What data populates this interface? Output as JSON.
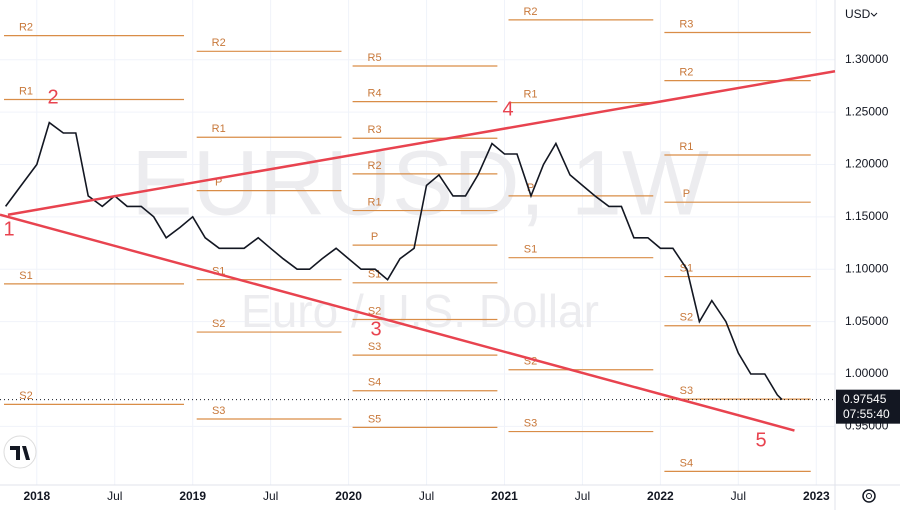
{
  "chart_data": {
    "type": "line",
    "title": "EURUSD, 1W",
    "subtitle": "Euro / U.S. Dollar",
    "currency": "USD",
    "last_price": 0.97545,
    "last_price_label": "0.97545",
    "countdown": "07:55:40",
    "color": "#131722",
    "ylim": [
      0.894,
      1.357
    ],
    "xlim": [
      2017.764,
      2023.12
    ],
    "yticks": [
      {
        "value": 0.95,
        "label": "0.95000"
      },
      {
        "value": 1.0,
        "label": "1.00000"
      },
      {
        "value": 1.05,
        "label": "1.05000"
      },
      {
        "value": 1.1,
        "label": "1.10000"
      },
      {
        "value": 1.15,
        "label": "1.15000"
      },
      {
        "value": 1.2,
        "label": "1.20000"
      },
      {
        "value": 1.25,
        "label": "1.25000"
      },
      {
        "value": 1.3,
        "label": "1.30000"
      }
    ],
    "xticks": [
      {
        "value": 2018,
        "label": "2018"
      },
      {
        "value": 2018.5,
        "label": "Jul"
      },
      {
        "value": 2019,
        "label": "2019"
      },
      {
        "value": 2019.5,
        "label": "Jul"
      },
      {
        "value": 2020,
        "label": "2020"
      },
      {
        "value": 2020.5,
        "label": "Jul"
      },
      {
        "value": 2021,
        "label": "2021"
      },
      {
        "value": 2021.5,
        "label": "Jul"
      },
      {
        "value": 2022,
        "label": "2022"
      },
      {
        "value": 2022.5,
        "label": "Jul"
      },
      {
        "value": 2023,
        "label": "2023"
      }
    ],
    "x": [
      2017.8,
      2017.9,
      2018.0,
      2018.08,
      2018.17,
      2018.25,
      2018.33,
      2018.42,
      2018.5,
      2018.58,
      2018.67,
      2018.75,
      2018.83,
      2018.92,
      2019.0,
      2019.08,
      2019.17,
      2019.25,
      2019.33,
      2019.42,
      2019.5,
      2019.58,
      2019.67,
      2019.75,
      2019.83,
      2019.92,
      2020.0,
      2020.08,
      2020.17,
      2020.25,
      2020.33,
      2020.42,
      2020.5,
      2020.58,
      2020.67,
      2020.75,
      2020.83,
      2020.92,
      2021.0,
      2021.08,
      2021.17,
      2021.25,
      2021.33,
      2021.42,
      2021.5,
      2021.58,
      2021.67,
      2021.75,
      2021.83,
      2021.92,
      2022.0,
      2022.08,
      2022.17,
      2022.25,
      2022.33,
      2022.42,
      2022.5,
      2022.58,
      2022.67,
      2022.75,
      2022.78
    ],
    "values": [
      1.16,
      1.18,
      1.2,
      1.24,
      1.23,
      1.23,
      1.17,
      1.16,
      1.17,
      1.16,
      1.16,
      1.15,
      1.13,
      1.14,
      1.15,
      1.13,
      1.12,
      1.12,
      1.12,
      1.13,
      1.12,
      1.11,
      1.1,
      1.1,
      1.11,
      1.12,
      1.11,
      1.1,
      1.1,
      1.09,
      1.11,
      1.12,
      1.18,
      1.19,
      1.17,
      1.17,
      1.19,
      1.22,
      1.21,
      1.21,
      1.17,
      1.2,
      1.22,
      1.19,
      1.18,
      1.17,
      1.16,
      1.16,
      1.13,
      1.13,
      1.12,
      1.12,
      1.1,
      1.05,
      1.07,
      1.05,
      1.02,
      1.0,
      1.0,
      0.98,
      0.9755
    ],
    "trendlines": [
      {
        "color": "#e8434f",
        "x": [
          2017.815,
          2023.12
        ],
        "y": [
          1.152,
          1.289
        ]
      },
      {
        "color": "#e8434f",
        "x": [
          2017.764,
          2022.86
        ],
        "y": [
          1.152,
          0.946
        ]
      }
    ],
    "wave_labels": [
      "1",
      "2",
      "3",
      "4",
      "5"
    ],
    "pivot_color": "#d98d47",
    "pivots": [
      {
        "x": [
          2017.764,
          2018.97
        ],
        "levels": [
          {
            "label": "R2",
            "value": 1.323
          },
          {
            "label": "R1",
            "value": 1.262
          },
          {
            "label": "S1",
            "value": 1.086
          },
          {
            "label": "S2",
            "value": 0.971
          }
        ]
      },
      {
        "x": [
          2019.0,
          2019.98
        ],
        "levels": [
          {
            "label": "R2",
            "value": 1.308
          },
          {
            "label": "R1",
            "value": 1.226
          },
          {
            "label": "P",
            "value": 1.175
          },
          {
            "label": "S1",
            "value": 1.09
          },
          {
            "label": "S2",
            "value": 1.04
          },
          {
            "label": "S3",
            "value": 0.957
          }
        ]
      },
      {
        "x": [
          2020.0,
          2020.98
        ],
        "levels": [
          {
            "label": "R5",
            "value": 1.294
          },
          {
            "label": "R4",
            "value": 1.26
          },
          {
            "label": "R3",
            "value": 1.225
          },
          {
            "label": "R2",
            "value": 1.191
          },
          {
            "label": "R1",
            "value": 1.156
          },
          {
            "label": "P",
            "value": 1.123
          },
          {
            "label": "S1",
            "value": 1.087
          },
          {
            "label": "S2",
            "value": 1.052
          },
          {
            "label": "S3",
            "value": 1.018
          },
          {
            "label": "S4",
            "value": 0.984
          },
          {
            "label": "S5",
            "value": 0.949
          }
        ]
      },
      {
        "x": [
          2021.0,
          2021.98
        ],
        "levels": [
          {
            "label": "R2",
            "value": 1.338
          },
          {
            "label": "R1",
            "value": 1.259
          },
          {
            "label": "P",
            "value": 1.17
          },
          {
            "label": "S1",
            "value": 1.111
          },
          {
            "label": "S2",
            "value": 1.004
          },
          {
            "label": "S3",
            "value": 0.945
          }
        ]
      },
      {
        "x": [
          2022.0,
          2022.99
        ],
        "levels": [
          {
            "label": "R3",
            "value": 1.326
          },
          {
            "label": "R2",
            "value": 1.28
          },
          {
            "label": "R1",
            "value": 1.209
          },
          {
            "label": "P",
            "value": 1.164
          },
          {
            "label": "S1",
            "value": 1.093
          },
          {
            "label": "S2",
            "value": 1.046
          },
          {
            "label": "S3",
            "value": 0.976
          },
          {
            "label": "S4",
            "value": 0.907
          }
        ]
      }
    ]
  }
}
